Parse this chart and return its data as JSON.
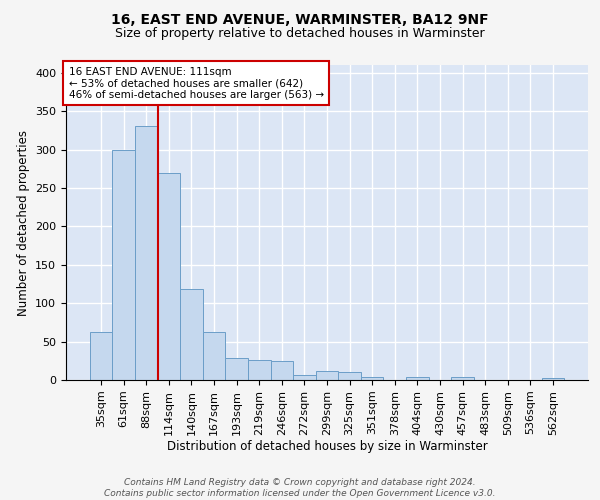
{
  "title": "16, EAST END AVENUE, WARMINSTER, BA12 9NF",
  "subtitle": "Size of property relative to detached houses in Warminster",
  "xlabel": "Distribution of detached houses by size in Warminster",
  "ylabel": "Number of detached properties",
  "categories": [
    "35sqm",
    "61sqm",
    "88sqm",
    "114sqm",
    "140sqm",
    "167sqm",
    "193sqm",
    "219sqm",
    "246sqm",
    "272sqm",
    "299sqm",
    "325sqm",
    "351sqm",
    "378sqm",
    "404sqm",
    "430sqm",
    "457sqm",
    "483sqm",
    "509sqm",
    "536sqm",
    "562sqm"
  ],
  "values": [
    62,
    300,
    330,
    270,
    118,
    63,
    28,
    26,
    25,
    6,
    12,
    11,
    4,
    0,
    4,
    0,
    4,
    0,
    0,
    0,
    3
  ],
  "bar_color": "#c5d8ee",
  "bar_edge_color": "#6b9ec8",
  "background_color": "#dce6f5",
  "grid_color": "#ffffff",
  "red_line_x": 2.5,
  "annotation_line_color": "#cc0000",
  "annotation_box_text": "16 EAST END AVENUE: 111sqm\n← 53% of detached houses are smaller (642)\n46% of semi-detached houses are larger (563) →",
  "footer_text": "Contains HM Land Registry data © Crown copyright and database right 2024.\nContains public sector information licensed under the Open Government Licence v3.0.",
  "ylim": [
    0,
    410
  ],
  "yticks": [
    0,
    50,
    100,
    150,
    200,
    250,
    300,
    350,
    400
  ],
  "fig_facecolor": "#f5f5f5",
  "title_fontsize": 10,
  "subtitle_fontsize": 9,
  "ylabel_fontsize": 8.5,
  "xlabel_fontsize": 8.5,
  "tick_fontsize": 8,
  "annotation_fontsize": 7.5,
  "footer_fontsize": 6.5
}
